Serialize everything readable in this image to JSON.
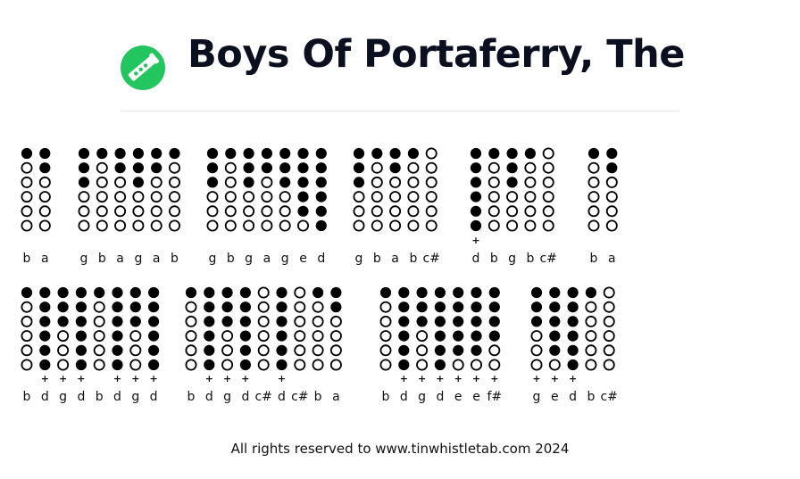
{
  "header": {
    "title": "Boys Of Portaferry, The",
    "logo_icon": "tin-whistle-icon",
    "logo_color": "#22c55e"
  },
  "tablature": {
    "note_fingerings": {
      "d": [
        1,
        1,
        1,
        1,
        1,
        1
      ],
      "e": [
        1,
        1,
        1,
        1,
        1,
        0
      ],
      "f#": [
        1,
        1,
        1,
        1,
        0,
        0
      ],
      "g": [
        1,
        1,
        1,
        0,
        0,
        0
      ],
      "a": [
        1,
        1,
        0,
        0,
        0,
        0
      ],
      "b": [
        1,
        0,
        0,
        0,
        0,
        0
      ],
      "c#": [
        0,
        0,
        0,
        0,
        0,
        0
      ],
      "c": [
        0,
        1,
        1,
        0,
        0,
        0
      ]
    },
    "rows": [
      {
        "groups": [
          {
            "notes": [
              {
                "n": "b",
                "p": false
              },
              {
                "n": "a",
                "p": false
              }
            ]
          },
          {
            "notes": [
              {
                "n": "g",
                "p": false
              },
              {
                "n": "b",
                "p": false
              },
              {
                "n": "a",
                "p": false
              },
              {
                "n": "g",
                "p": false
              },
              {
                "n": "a",
                "p": false
              },
              {
                "n": "b",
                "p": false
              }
            ]
          },
          {
            "notes": [
              {
                "n": "g",
                "p": false
              },
              {
                "n": "b",
                "p": false
              },
              {
                "n": "g",
                "p": false
              },
              {
                "n": "a",
                "p": false
              },
              {
                "n": "g",
                "p": false
              },
              {
                "n": "e",
                "p": false
              },
              {
                "n": "d",
                "p": false
              }
            ]
          },
          {
            "notes": [
              {
                "n": "g",
                "p": false
              },
              {
                "n": "b",
                "p": false
              },
              {
                "n": "a",
                "p": false
              },
              {
                "n": "b",
                "p": false
              },
              {
                "n": "c#",
                "p": false
              }
            ]
          },
          {
            "notes": [
              {
                "n": "d",
                "p": true
              },
              {
                "n": "b",
                "p": false
              },
              {
                "n": "g",
                "p": false
              },
              {
                "n": "b",
                "p": false
              },
              {
                "n": "c#",
                "p": false
              }
            ]
          },
          {
            "notes": [
              {
                "n": "b",
                "p": false
              },
              {
                "n": "a",
                "p": false
              }
            ]
          }
        ]
      },
      {
        "groups": [
          {
            "notes": [
              {
                "n": "b",
                "p": false
              },
              {
                "n": "d",
                "p": true
              },
              {
                "n": "g",
                "p": true
              },
              {
                "n": "d",
                "p": true
              },
              {
                "n": "b",
                "p": false
              },
              {
                "n": "d",
                "p": true
              },
              {
                "n": "g",
                "p": true
              },
              {
                "n": "d",
                "p": true
              }
            ]
          },
          {
            "notes": [
              {
                "n": "b",
                "p": false
              },
              {
                "n": "d",
                "p": true
              },
              {
                "n": "g",
                "p": true
              },
              {
                "n": "d",
                "p": true
              },
              {
                "n": "c#",
                "p": false
              },
              {
                "n": "d",
                "p": true
              },
              {
                "n": "c#",
                "p": false
              },
              {
                "n": "b",
                "p": false
              },
              {
                "n": "a",
                "p": false
              }
            ]
          },
          {
            "notes": [
              {
                "n": "b",
                "p": false
              },
              {
                "n": "d",
                "p": true
              },
              {
                "n": "g",
                "p": true
              },
              {
                "n": "d",
                "p": true
              },
              {
                "n": "e",
                "p": true
              },
              {
                "n": "e",
                "p": true
              },
              {
                "n": "f#",
                "p": true
              }
            ]
          },
          {
            "notes": [
              {
                "n": "g",
                "p": true
              },
              {
                "n": "e",
                "p": true
              },
              {
                "n": "d",
                "p": true
              },
              {
                "n": "b",
                "p": false
              },
              {
                "n": "c#",
                "p": false
              }
            ]
          }
        ]
      }
    ]
  },
  "footer": {
    "text": "All rights reserved to www.tinwhistletab.com 2024"
  }
}
